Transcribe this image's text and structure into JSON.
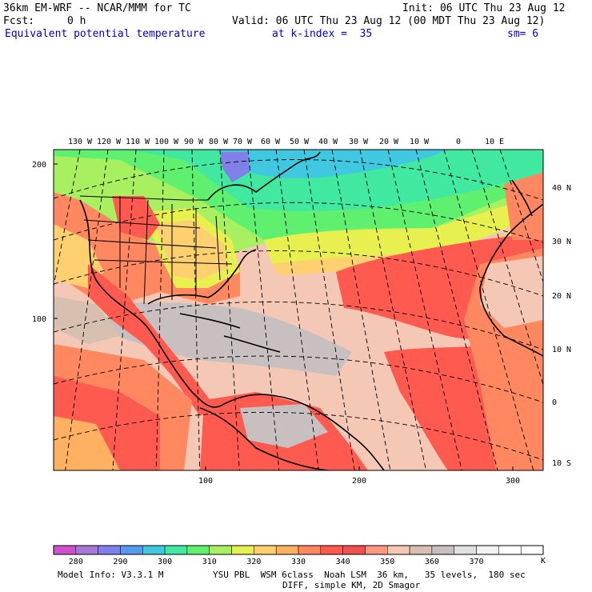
{
  "header": {
    "model_line": "36km EM-WRF -- NCAR/MMM for TC",
    "init": "Init: 06 UTC Thu 23 Aug 12",
    "fcst_label": "Fcst:",
    "fcst_value": "0 h",
    "valid": "Valid: 06 UTC Thu 23 Aug 12 (00 MDT Thu 23 Aug 12)",
    "field": "Equivalent potential temperature",
    "kindex": "at k-index =  35",
    "sm": "sm= 6"
  },
  "map": {
    "top_lon_labels": [
      "130 W",
      "120 W",
      "110 W",
      "100 W",
      "90 W",
      "80 W",
      "70 W",
      "60 W",
      "50 W",
      "40 W",
      "30 W",
      "20 W",
      "10 W",
      "0",
      "10 E"
    ],
    "right_lat_labels": [
      "40 N",
      "30 N",
      "20 N",
      "10 N",
      "0",
      "10 S"
    ],
    "left_grid_labels": [
      "200",
      "100"
    ],
    "bottom_grid_labels": [
      "100",
      "200",
      "300"
    ]
  },
  "colorbar": {
    "colors": [
      "#d050d0",
      "#a878d8",
      "#8080e8",
      "#5898f0",
      "#40c8e0",
      "#40e8a0",
      "#60f070",
      "#a8f060",
      "#e8f050",
      "#ffd070",
      "#ffb060",
      "#ff8860",
      "#ff5a50",
      "#f05050",
      "#ff9880",
      "#f4c8b4",
      "#d8c0b0",
      "#c8c0c0",
      "#e0e0e0",
      "#f2f2f2",
      "#ffffff",
      "#ffffff"
    ],
    "labels": [
      "280",
      "290",
      "300",
      "310",
      "320",
      "330",
      "340",
      "350",
      "360",
      "370"
    ],
    "unit": "K"
  },
  "footer": {
    "line1_left": "Model Info: V3.3.1 M",
    "line1_right": "YSU PBL  WSM 6class  Noah LSM  36 km,   35 levels,  180 sec",
    "line2": "DIFF, simple KM, 2D Smagor"
  }
}
